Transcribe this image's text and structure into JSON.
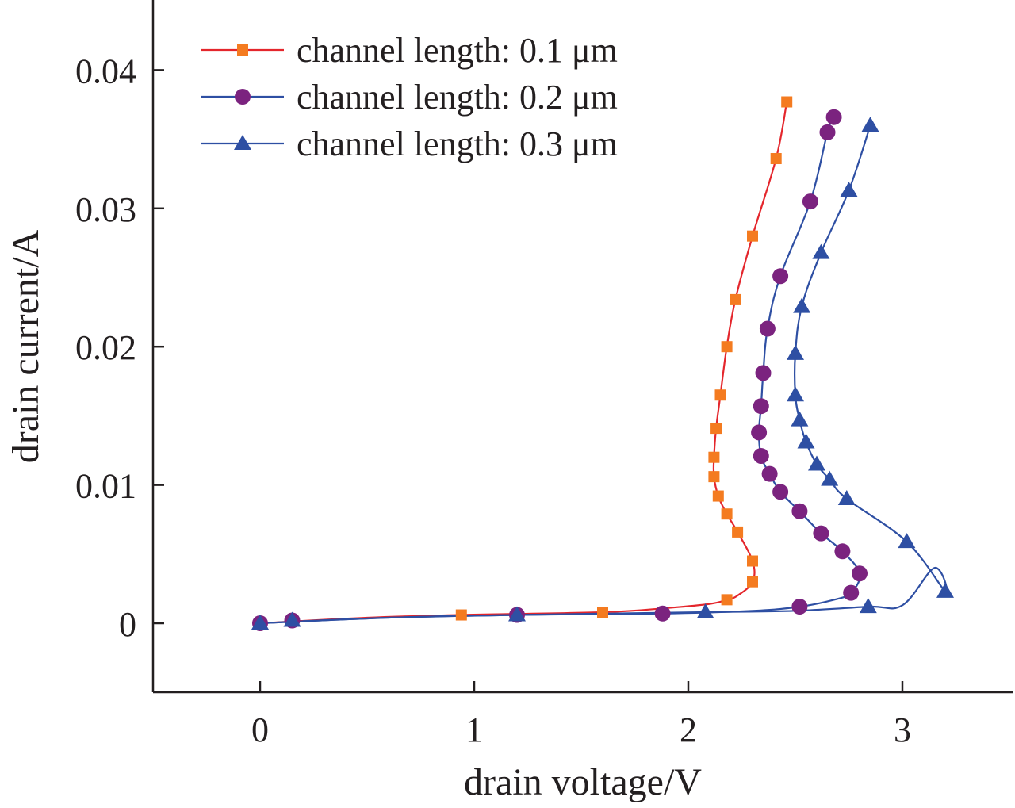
{
  "chart_data": {
    "type": "line",
    "xlabel": "drain voltage/V",
    "ylabel": "drain current/A",
    "xlim": [
      -0.5,
      3.5
    ],
    "ylim": [
      -0.005,
      0.045
    ],
    "x_ticks": [
      {
        "value": 0,
        "label": "0"
      },
      {
        "value": 1,
        "label": "1"
      },
      {
        "value": 2,
        "label": "2"
      },
      {
        "value": 3,
        "label": "3"
      }
    ],
    "y_ticks": [
      {
        "value": 0,
        "label": "0"
      },
      {
        "value": 0.01,
        "label": "0.01"
      },
      {
        "value": 0.02,
        "label": "0.02"
      },
      {
        "value": 0.03,
        "label": "0.03"
      },
      {
        "value": 0.04,
        "label": "0.04"
      }
    ],
    "legend_position": "top-left",
    "grid": false,
    "series": [
      {
        "name": "channel length: 0.1 μm",
        "line_color": "#e4262c",
        "marker_color": "#f47b20",
        "marker": "square",
        "points": [
          [
            0.0,
            0.0
          ],
          [
            0.15,
            0.0002
          ],
          [
            0.94,
            0.0006
          ],
          [
            1.6,
            0.0008
          ],
          [
            2.18,
            0.0017
          ],
          [
            2.3,
            0.003
          ],
          [
            2.3,
            0.0045
          ],
          [
            2.23,
            0.0066
          ],
          [
            2.18,
            0.0079
          ],
          [
            2.14,
            0.0092
          ],
          [
            2.12,
            0.0106
          ],
          [
            2.12,
            0.012
          ],
          [
            2.13,
            0.0141
          ],
          [
            2.15,
            0.0165
          ],
          [
            2.18,
            0.02
          ],
          [
            2.22,
            0.0234
          ],
          [
            2.3,
            0.028
          ],
          [
            2.41,
            0.0336
          ],
          [
            2.46,
            0.0377
          ]
        ],
        "curve": [
          [
            0.0,
            0.0
          ],
          [
            0.5,
            0.0004
          ],
          [
            0.94,
            0.0006
          ],
          [
            1.6,
            0.0008
          ],
          [
            1.9,
            0.0011
          ],
          [
            2.1,
            0.0014
          ],
          [
            2.18,
            0.0017
          ],
          [
            2.23,
            0.002
          ],
          [
            2.3,
            0.003
          ],
          [
            2.3,
            0.0045
          ],
          [
            2.23,
            0.0066
          ],
          [
            2.18,
            0.0079
          ],
          [
            2.14,
            0.0092
          ],
          [
            2.12,
            0.0106
          ],
          [
            2.12,
            0.012
          ],
          [
            2.13,
            0.0141
          ],
          [
            2.15,
            0.0165
          ],
          [
            2.18,
            0.02
          ],
          [
            2.22,
            0.0234
          ],
          [
            2.3,
            0.028
          ],
          [
            2.41,
            0.0336
          ],
          [
            2.46,
            0.0377
          ]
        ]
      },
      {
        "name": "channel length: 0.2 μm",
        "line_color": "#2e4fa3",
        "marker_color": "#7b237f",
        "marker": "circle",
        "points": [
          [
            0.0,
            0.0
          ],
          [
            0.15,
            0.0002
          ],
          [
            1.2,
            0.0006
          ],
          [
            1.88,
            0.0007
          ],
          [
            2.52,
            0.0012
          ],
          [
            2.76,
            0.0022
          ],
          [
            2.8,
            0.0036
          ],
          [
            2.72,
            0.0052
          ],
          [
            2.62,
            0.0065
          ],
          [
            2.52,
            0.0081
          ],
          [
            2.43,
            0.0095
          ],
          [
            2.38,
            0.0108
          ],
          [
            2.34,
            0.0121
          ],
          [
            2.33,
            0.0138
          ],
          [
            2.34,
            0.0157
          ],
          [
            2.35,
            0.0181
          ],
          [
            2.37,
            0.0213
          ],
          [
            2.43,
            0.0251
          ],
          [
            2.57,
            0.0305
          ],
          [
            2.65,
            0.0355
          ],
          [
            2.68,
            0.0366
          ]
        ],
        "curve": [
          [
            0.0,
            0.0
          ],
          [
            0.6,
            0.0004
          ],
          [
            1.2,
            0.0006
          ],
          [
            1.88,
            0.0007
          ],
          [
            2.3,
            0.0009
          ],
          [
            2.52,
            0.0012
          ],
          [
            2.68,
            0.0017
          ],
          [
            2.76,
            0.0022
          ],
          [
            2.8,
            0.0036
          ],
          [
            2.72,
            0.0052
          ],
          [
            2.62,
            0.0065
          ],
          [
            2.52,
            0.0081
          ],
          [
            2.43,
            0.0095
          ],
          [
            2.38,
            0.0108
          ],
          [
            2.34,
            0.0121
          ],
          [
            2.33,
            0.0138
          ],
          [
            2.34,
            0.0157
          ],
          [
            2.35,
            0.0181
          ],
          [
            2.37,
            0.0213
          ],
          [
            2.43,
            0.0251
          ],
          [
            2.57,
            0.0305
          ],
          [
            2.65,
            0.0355
          ],
          [
            2.68,
            0.0366
          ]
        ]
      },
      {
        "name": "channel length: 0.3 μm",
        "line_color": "#2e4fa3",
        "marker_color": "#2e4fa3",
        "marker": "triangle",
        "points": [
          [
            0.0,
            0.0
          ],
          [
            0.15,
            0.0002
          ],
          [
            1.2,
            0.0006
          ],
          [
            2.08,
            0.0008
          ],
          [
            2.84,
            0.0012
          ],
          [
            3.2,
            0.0023
          ],
          [
            3.02,
            0.0059
          ],
          [
            2.74,
            0.009
          ],
          [
            2.66,
            0.0104
          ],
          [
            2.6,
            0.0115
          ],
          [
            2.55,
            0.0131
          ],
          [
            2.52,
            0.0147
          ],
          [
            2.5,
            0.0165
          ],
          [
            2.5,
            0.0195
          ],
          [
            2.53,
            0.0229
          ],
          [
            2.62,
            0.0268
          ],
          [
            2.75,
            0.0313
          ],
          [
            2.85,
            0.036
          ]
        ],
        "curve": [
          [
            0.0,
            0.0
          ],
          [
            0.6,
            0.0004
          ],
          [
            1.2,
            0.0006
          ],
          [
            2.08,
            0.0008
          ],
          [
            2.5,
            0.0009
          ],
          [
            2.84,
            0.0012
          ],
          [
            3.0,
            0.0013
          ],
          [
            3.15,
            0.004
          ],
          [
            3.2,
            0.0023
          ],
          [
            3.02,
            0.0059
          ],
          [
            2.74,
            0.009
          ],
          [
            2.66,
            0.0104
          ],
          [
            2.6,
            0.0115
          ],
          [
            2.55,
            0.0131
          ],
          [
            2.52,
            0.0147
          ],
          [
            2.5,
            0.0165
          ],
          [
            2.5,
            0.0195
          ],
          [
            2.53,
            0.0229
          ],
          [
            2.62,
            0.0268
          ],
          [
            2.75,
            0.0313
          ],
          [
            2.85,
            0.036
          ]
        ]
      }
    ]
  }
}
